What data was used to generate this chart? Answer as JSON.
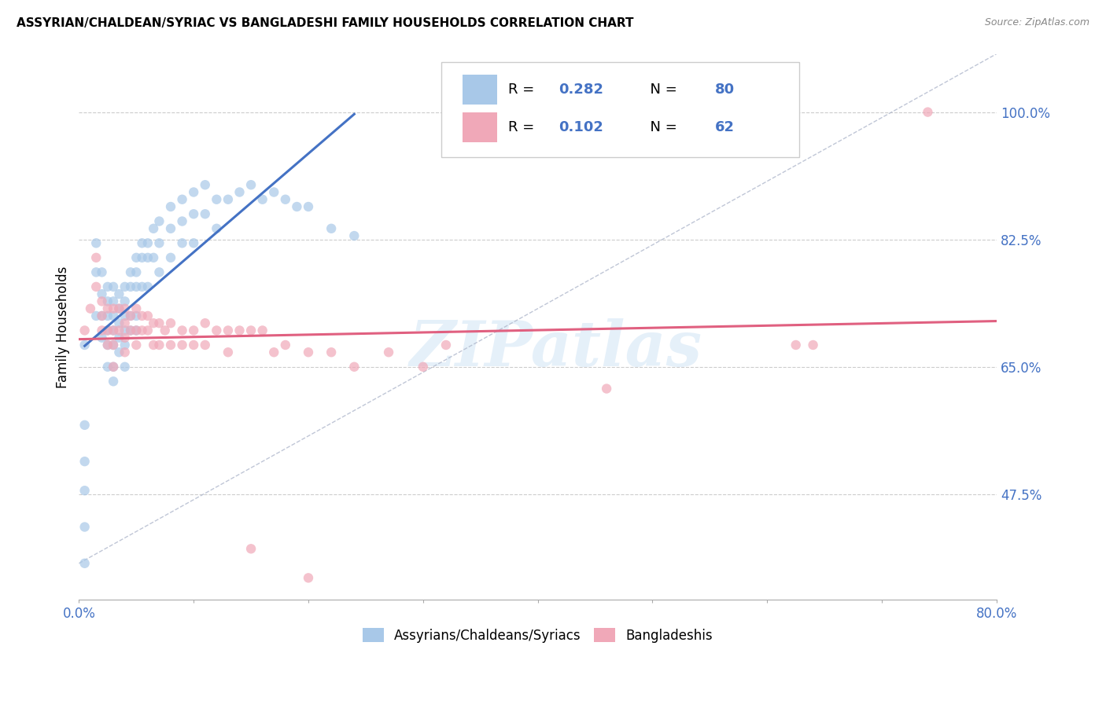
{
  "title": "ASSYRIAN/CHALDEAN/SYRIAC VS BANGLADESHI FAMILY HOUSEHOLDS CORRELATION CHART",
  "source": "Source: ZipAtlas.com",
  "ylabel": "Family Households",
  "ytick_labels": [
    "47.5%",
    "65.0%",
    "82.5%",
    "100.0%"
  ],
  "ytick_values": [
    0.475,
    0.65,
    0.825,
    1.0
  ],
  "xlim": [
    0.0,
    0.8
  ],
  "ylim": [
    0.33,
    1.08
  ],
  "color_blue": "#a8c8e8",
  "color_pink": "#f0a8b8",
  "line_blue": "#4472c4",
  "line_pink": "#e06080",
  "line_diag": "#b0b8cc",
  "watermark_text": "ZIPatlas",
  "legend_label1": "Assyrians/Chaldeans/Syriacs",
  "legend_label2": "Bangladeshis",
  "blue_x": [
    0.005,
    0.015,
    0.015,
    0.015,
    0.02,
    0.02,
    0.02,
    0.02,
    0.025,
    0.025,
    0.025,
    0.025,
    0.025,
    0.025,
    0.03,
    0.03,
    0.03,
    0.03,
    0.03,
    0.03,
    0.03,
    0.035,
    0.035,
    0.035,
    0.035,
    0.035,
    0.04,
    0.04,
    0.04,
    0.04,
    0.04,
    0.04,
    0.045,
    0.045,
    0.045,
    0.045,
    0.05,
    0.05,
    0.05,
    0.05,
    0.05,
    0.055,
    0.055,
    0.055,
    0.06,
    0.06,
    0.06,
    0.065,
    0.065,
    0.07,
    0.07,
    0.07,
    0.08,
    0.08,
    0.08,
    0.09,
    0.09,
    0.09,
    0.1,
    0.1,
    0.1,
    0.11,
    0.11,
    0.12,
    0.12,
    0.13,
    0.14,
    0.15,
    0.16,
    0.17,
    0.18,
    0.19,
    0.2,
    0.22,
    0.24,
    0.005,
    0.005,
    0.005,
    0.005,
    0.005
  ],
  "blue_y": [
    0.68,
    0.82,
    0.78,
    0.72,
    0.78,
    0.75,
    0.72,
    0.69,
    0.76,
    0.74,
    0.72,
    0.7,
    0.68,
    0.65,
    0.76,
    0.74,
    0.72,
    0.7,
    0.68,
    0.65,
    0.63,
    0.75,
    0.73,
    0.71,
    0.69,
    0.67,
    0.76,
    0.74,
    0.72,
    0.7,
    0.68,
    0.65,
    0.78,
    0.76,
    0.72,
    0.7,
    0.8,
    0.78,
    0.76,
    0.72,
    0.7,
    0.82,
    0.8,
    0.76,
    0.82,
    0.8,
    0.76,
    0.84,
    0.8,
    0.85,
    0.82,
    0.78,
    0.87,
    0.84,
    0.8,
    0.88,
    0.85,
    0.82,
    0.89,
    0.86,
    0.82,
    0.9,
    0.86,
    0.88,
    0.84,
    0.88,
    0.89,
    0.9,
    0.88,
    0.89,
    0.88,
    0.87,
    0.87,
    0.84,
    0.83,
    0.57,
    0.52,
    0.48,
    0.43,
    0.38
  ],
  "pink_x": [
    0.005,
    0.01,
    0.015,
    0.015,
    0.02,
    0.02,
    0.02,
    0.025,
    0.025,
    0.025,
    0.03,
    0.03,
    0.03,
    0.03,
    0.035,
    0.035,
    0.04,
    0.04,
    0.04,
    0.04,
    0.045,
    0.045,
    0.05,
    0.05,
    0.05,
    0.055,
    0.055,
    0.06,
    0.06,
    0.065,
    0.065,
    0.07,
    0.07,
    0.075,
    0.08,
    0.08,
    0.09,
    0.09,
    0.1,
    0.1,
    0.11,
    0.11,
    0.12,
    0.13,
    0.13,
    0.14,
    0.15,
    0.16,
    0.17,
    0.18,
    0.2,
    0.22,
    0.24,
    0.27,
    0.3,
    0.32,
    0.46,
    0.625,
    0.64,
    0.74,
    0.15,
    0.2
  ],
  "pink_y": [
    0.7,
    0.73,
    0.8,
    0.76,
    0.74,
    0.72,
    0.7,
    0.73,
    0.7,
    0.68,
    0.73,
    0.7,
    0.68,
    0.65,
    0.73,
    0.7,
    0.73,
    0.71,
    0.69,
    0.67,
    0.72,
    0.7,
    0.73,
    0.7,
    0.68,
    0.72,
    0.7,
    0.72,
    0.7,
    0.71,
    0.68,
    0.71,
    0.68,
    0.7,
    0.71,
    0.68,
    0.7,
    0.68,
    0.7,
    0.68,
    0.71,
    0.68,
    0.7,
    0.7,
    0.67,
    0.7,
    0.7,
    0.7,
    0.67,
    0.68,
    0.67,
    0.67,
    0.65,
    0.67,
    0.65,
    0.68,
    0.62,
    0.68,
    0.68,
    1.0,
    0.4,
    0.36
  ]
}
